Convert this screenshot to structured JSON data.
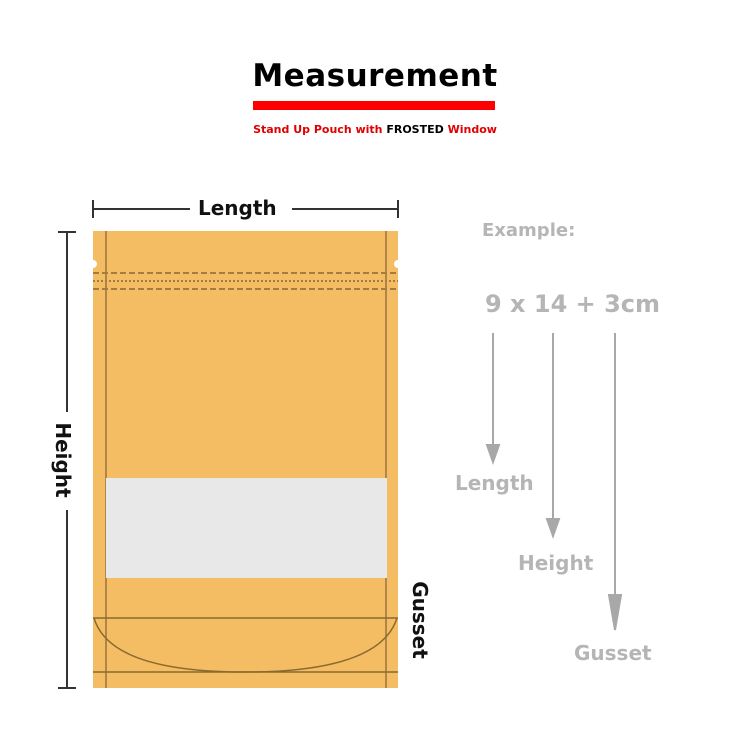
{
  "header": {
    "title": "Measurement",
    "subtitle_parts": [
      "Stand Up Pouch with ",
      "FROSTED",
      " Window"
    ]
  },
  "diagram": {
    "pouch_color": "#f5bd63",
    "window_color": "#e8e8e8",
    "labels": {
      "length": "Length",
      "height": "Height",
      "gusset": "Gusset"
    }
  },
  "example": {
    "heading": "Example:",
    "formula": "9 x 14 + 3cm",
    "arrows": [
      "Length",
      "Height",
      "Gusset"
    ]
  }
}
